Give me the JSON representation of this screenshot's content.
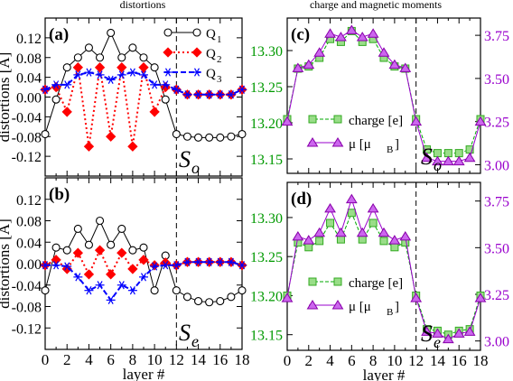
{
  "titles": {
    "left": "distortions",
    "right": "charge and magnetic moments"
  },
  "chart_data": [
    {
      "type": "line",
      "panel": "a",
      "panel_label": "(a)",
      "ylabel": "distortions [Å]",
      "xlabel": "",
      "xlim": [
        0,
        18
      ],
      "ylim": [
        -0.16,
        0.16
      ],
      "yticks": [
        "0.12",
        "0.08",
        "0.04",
        "0.00",
        "-0.04",
        "-0.08",
        "-0.12"
      ],
      "xticks": [],
      "note_main": "S",
      "note_sub": "o",
      "x": [
        0,
        1,
        2,
        3,
        4,
        5,
        6,
        7,
        8,
        9,
        10,
        11,
        12,
        13,
        14,
        15,
        16,
        17,
        18
      ],
      "series": [
        {
          "name": "Q",
          "sub": "1",
          "color": "#000000",
          "values": [
            -0.075,
            -0.005,
            0.06,
            0.08,
            0.1,
            0.08,
            0.13,
            0.08,
            0.1,
            0.08,
            0.06,
            -0.005,
            -0.075,
            -0.08,
            -0.082,
            -0.082,
            -0.082,
            -0.08,
            -0.075
          ]
        },
        {
          "name": "Q",
          "sub": "2",
          "color": "#ff0000",
          "values": [
            0.015,
            0.02,
            -0.03,
            0.06,
            -0.1,
            0.06,
            -0.08,
            0.06,
            -0.1,
            0.06,
            -0.03,
            0.02,
            0.015,
            0.005,
            0.005,
            0.005,
            0.005,
            0.005,
            0.015
          ]
        },
        {
          "name": "Q",
          "sub": "3",
          "color": "#0000ff",
          "values": [
            0.015,
            0.025,
            0.025,
            0.045,
            0.05,
            0.045,
            0.035,
            0.045,
            0.05,
            0.045,
            0.025,
            0.025,
            0.015,
            0.005,
            0.005,
            0.005,
            0.005,
            0.005,
            0.015
          ]
        }
      ]
    },
    {
      "type": "line",
      "panel": "b",
      "panel_label": "(b)",
      "ylabel": "distortions [Å]",
      "xlabel": "layer #",
      "xlim": [
        0,
        18
      ],
      "ylim": [
        -0.16,
        0.16
      ],
      "yticks": [
        "0.12",
        "0.08",
        "0.04",
        "0.00",
        "-0.04",
        "-0.08",
        "-0.12"
      ],
      "xticks": [
        "0",
        "2",
        "4",
        "6",
        "8",
        "10",
        "12",
        "14",
        "16",
        "18"
      ],
      "note_main": "S",
      "note_sub": "e",
      "x": [
        0,
        1,
        2,
        3,
        4,
        5,
        6,
        7,
        8,
        9,
        10,
        11,
        12,
        13,
        14,
        15,
        16,
        17,
        18
      ],
      "series": [
        {
          "name": "Q1",
          "color": "#000000",
          "values": [
            -0.05,
            0.03,
            0.025,
            0.065,
            0.035,
            0.08,
            0.035,
            0.065,
            0.025,
            0.03,
            -0.05,
            0.015,
            -0.05,
            -0.062,
            -0.07,
            -0.072,
            -0.07,
            -0.062,
            -0.05
          ]
        },
        {
          "name": "Q2",
          "color": "#ff0000",
          "values": [
            -0.003,
            0.007,
            -0.01,
            0.02,
            -0.02,
            0.025,
            -0.02,
            0.02,
            -0.01,
            0.007,
            -0.003,
            0.002,
            -0.003,
            0.003,
            0.003,
            0.003,
            0.003,
            0.003,
            -0.003
          ]
        },
        {
          "name": "Q3",
          "color": "#0000ff",
          "values": [
            -0.003,
            -0.003,
            -0.005,
            -0.025,
            -0.05,
            -0.04,
            -0.068,
            -0.04,
            -0.05,
            -0.025,
            -0.005,
            -0.003,
            -0.003,
            0.003,
            0.003,
            0.003,
            0.003,
            0.003,
            -0.003
          ]
        }
      ]
    },
    {
      "type": "line",
      "panel": "c",
      "panel_label": "(c)",
      "xlabel": "",
      "xlim": [
        0,
        18
      ],
      "ylim_left": [
        13.13,
        13.345
      ],
      "ylim_right": [
        2.95,
        3.85
      ],
      "yticks_left": [
        "13.30",
        "13.25",
        "13.20",
        "13.15"
      ],
      "yticks_right": [
        "3.75",
        "3.50",
        "3.25",
        "3.00"
      ],
      "xticks": [],
      "note_main": "S",
      "note_sub": "o",
      "x": [
        0,
        1,
        2,
        3,
        4,
        5,
        6,
        7,
        8,
        9,
        10,
        11,
        12,
        13,
        14,
        15,
        16,
        17,
        18
      ],
      "series": [
        {
          "name": "charge [e]",
          "axis": "left",
          "color": "#00aa00",
          "values": [
            13.205,
            13.275,
            13.278,
            13.29,
            13.316,
            13.312,
            13.327,
            13.312,
            13.316,
            13.29,
            13.278,
            13.275,
            13.205,
            13.163,
            13.158,
            13.158,
            13.158,
            13.163,
            13.205
          ]
        },
        {
          "name": "μ [μ",
          "sub": "B",
          "close": "]",
          "axis": "right",
          "color": "#9900cc",
          "values": [
            3.25,
            3.56,
            3.58,
            3.65,
            3.76,
            3.74,
            3.78,
            3.74,
            3.76,
            3.65,
            3.58,
            3.56,
            3.25,
            3.04,
            3.02,
            3.02,
            3.02,
            3.04,
            3.25
          ]
        }
      ]
    },
    {
      "type": "line",
      "panel": "d",
      "panel_label": "(d)",
      "xlabel": "layer #",
      "xlim": [
        0,
        18
      ],
      "ylim_left": [
        13.13,
        13.345
      ],
      "ylim_right": [
        2.95,
        3.85
      ],
      "yticks_left": [
        "13.30",
        "13.25",
        "13.20",
        "13.15"
      ],
      "yticks_right": [
        "3.75",
        "3.50",
        "3.25",
        "3.00"
      ],
      "xticks": [
        "0",
        "2",
        "4",
        "6",
        "8",
        "10",
        "12",
        "14",
        "16",
        "18"
      ],
      "note_main": "S",
      "note_sub": "e",
      "x": [
        0,
        1,
        2,
        3,
        4,
        5,
        6,
        7,
        8,
        9,
        10,
        11,
        12,
        13,
        14,
        15,
        16,
        17,
        18
      ],
      "series": [
        {
          "name": "charge [e]",
          "axis": "left",
          "color": "#00aa00",
          "values": [
            13.2,
            13.268,
            13.262,
            13.27,
            13.293,
            13.272,
            13.306,
            13.272,
            13.293,
            13.27,
            13.262,
            13.268,
            13.2,
            13.157,
            13.155,
            13.15,
            13.155,
            13.157,
            13.2
          ]
        },
        {
          "name": "μ [μ",
          "sub": "B",
          "close": "]",
          "axis": "right",
          "color": "#9900cc",
          "values": [
            3.23,
            3.56,
            3.54,
            3.58,
            3.71,
            3.58,
            3.76,
            3.58,
            3.71,
            3.58,
            3.54,
            3.56,
            3.23,
            3.05,
            3.04,
            3.01,
            3.04,
            3.05,
            3.23
          ]
        }
      ]
    }
  ]
}
